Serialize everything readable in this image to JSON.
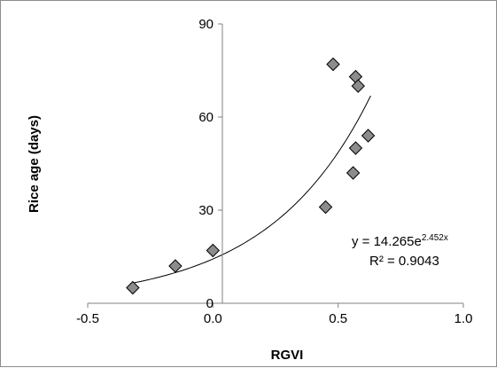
{
  "chart_data": {
    "type": "scatter",
    "xlabel": "RGVI",
    "ylabel": "Rice age (days)",
    "xlim": [
      -0.5,
      1.0
    ],
    "ylim": [
      0,
      90
    ],
    "x_ticks": [
      "-0.5",
      "0.0",
      "0.5",
      "1.0"
    ],
    "y_ticks": [
      "0",
      "30",
      "60",
      "90"
    ],
    "grid": false,
    "marker": "diamond",
    "marker_color": "#8c8c8c",
    "points": [
      {
        "x": -0.32,
        "y": 5
      },
      {
        "x": -0.15,
        "y": 12
      },
      {
        "x": 0.0,
        "y": 17
      },
      {
        "x": 0.45,
        "y": 31
      },
      {
        "x": 0.48,
        "y": 77
      },
      {
        "x": 0.56,
        "y": 42
      },
      {
        "x": 0.57,
        "y": 50
      },
      {
        "x": 0.57,
        "y": 73
      },
      {
        "x": 0.58,
        "y": 70
      },
      {
        "x": 0.62,
        "y": 54
      }
    ],
    "trendline": {
      "type": "exponential",
      "a": 14.265,
      "b": 2.452,
      "x_range": [
        -0.33,
        0.63
      ],
      "equation_prefix": "y = 14.265e",
      "equation_exponent": "2.452x",
      "r_squared_label": "R² = 0.9043"
    }
  }
}
